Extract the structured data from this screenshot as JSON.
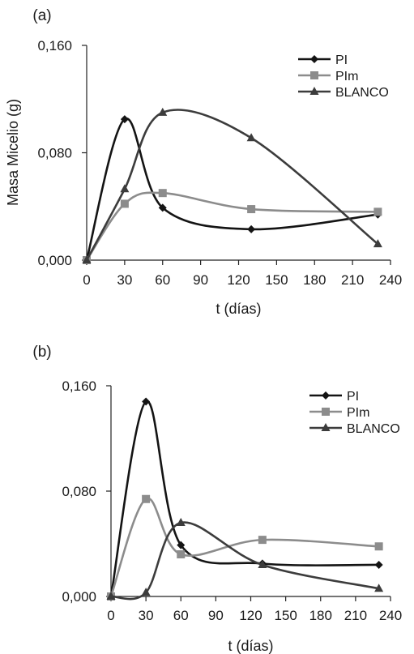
{
  "chart_data": [
    {
      "panel_label": "(a)",
      "type": "line",
      "xlabel": "t (días)",
      "ylabel": "Masa Micelio (g)",
      "xlim": [
        0,
        240
      ],
      "ylim": [
        0,
        0.16
      ],
      "x_ticks": [
        "0",
        "30",
        "60",
        "90",
        "120",
        "150",
        "180",
        "210",
        "240"
      ],
      "y_ticks": [
        "0,000",
        "0,080",
        "0,160"
      ],
      "grid": false,
      "legend_position": "top-right",
      "series": [
        {
          "name": "PI",
          "x": [
            0,
            30,
            60,
            130,
            230
          ],
          "values": [
            0.0,
            0.105,
            0.039,
            0.023,
            0.034
          ],
          "color": "#141414",
          "marker": "diamond"
        },
        {
          "name": "PIm",
          "x": [
            0,
            30,
            60,
            130,
            230
          ],
          "values": [
            0.0,
            0.042,
            0.05,
            0.038,
            0.036
          ],
          "color": "#8c8c8c",
          "marker": "square"
        },
        {
          "name": "BLANCO",
          "x": [
            0,
            30,
            60,
            130,
            230
          ],
          "values": [
            0.0,
            0.053,
            0.11,
            0.091,
            0.012
          ],
          "color": "#3c3c3c",
          "marker": "triangle"
        }
      ]
    },
    {
      "panel_label": "(b)",
      "type": "line",
      "xlabel": "t (días)",
      "ylabel": "",
      "xlim": [
        0,
        240
      ],
      "ylim": [
        0,
        0.16
      ],
      "x_ticks": [
        "0",
        "30",
        "60",
        "90",
        "120",
        "150",
        "180",
        "210",
        "240"
      ],
      "y_ticks": [
        "0,000",
        "0,080",
        "0,160"
      ],
      "grid": false,
      "legend_position": "top-right",
      "series": [
        {
          "name": "PI",
          "x": [
            0,
            30,
            60,
            130,
            230
          ],
          "values": [
            0.0,
            0.148,
            0.039,
            0.025,
            0.024
          ],
          "color": "#141414",
          "marker": "diamond"
        },
        {
          "name": "PIm",
          "x": [
            0,
            30,
            60,
            130,
            230
          ],
          "values": [
            0.0,
            0.074,
            0.032,
            0.043,
            0.038
          ],
          "color": "#8c8c8c",
          "marker": "square"
        },
        {
          "name": "BLANCO",
          "x": [
            0,
            30,
            60,
            130,
            230
          ],
          "values": [
            0.0,
            0.003,
            0.056,
            0.024,
            0.006
          ],
          "color": "#3c3c3c",
          "marker": "triangle"
        }
      ]
    }
  ]
}
